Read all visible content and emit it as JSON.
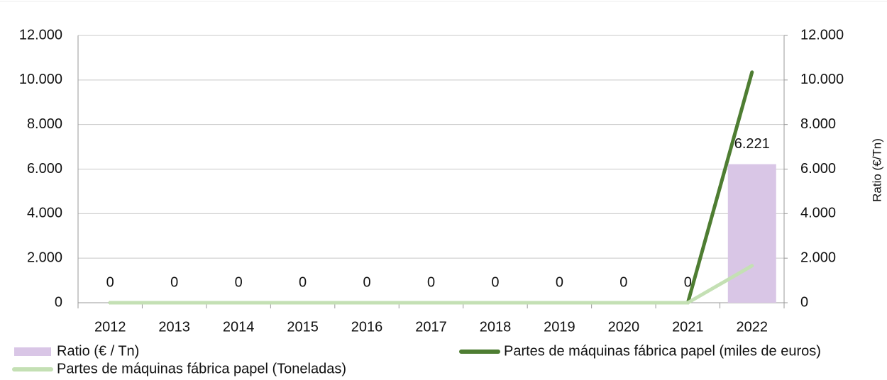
{
  "chart_data": {
    "type": "bar",
    "y2_label": "Ratio (€/Tn)",
    "categories": [
      "2012",
      "2013",
      "2014",
      "2015",
      "2016",
      "2017",
      "2018",
      "2019",
      "2020",
      "2021",
      "2022"
    ],
    "series": [
      {
        "name": "Ratio (€ / Tn)",
        "type": "bar",
        "axis": "y2",
        "color": "#d9c6e6",
        "values": [
          0,
          0,
          0,
          0,
          0,
          0,
          0,
          0,
          0,
          0,
          6221
        ],
        "value_labels": [
          "0",
          "0",
          "0",
          "0",
          "0",
          "0",
          "0",
          "0",
          "0",
          "0",
          "6.221"
        ]
      },
      {
        "name": "Partes de máquinas fábrica papel (miles de euros)",
        "type": "line",
        "axis": "y",
        "color": "#4e7d32",
        "values": [
          0,
          0,
          0,
          0,
          0,
          0,
          0,
          0,
          0,
          0,
          10350
        ]
      },
      {
        "name": "Partes de máquinas fábrica papel (Toneladas)",
        "type": "line",
        "axis": "y",
        "color": "#c4e0b4",
        "values": [
          0,
          0,
          0,
          0,
          0,
          0,
          0,
          0,
          0,
          0,
          1660
        ]
      }
    ],
    "ylim": [
      0,
      12000
    ],
    "yticks": [
      0,
      {
        "value": 2000,
        "label": "2.000"
      },
      {
        "value": 4000,
        "label": "4.000"
      },
      {
        "value": 6000,
        "label": "6.000"
      },
      {
        "value": 8000,
        "label": "8.000"
      },
      {
        "value": 10000,
        "label": "10.000"
      },
      {
        "value": 12000,
        "label": "12.000"
      }
    ],
    "y2lim": [
      0,
      12000
    ],
    "y2ticks": [
      0,
      {
        "value": 2000,
        "label": "2.000"
      },
      {
        "value": 4000,
        "label": "4.000"
      },
      {
        "value": 6000,
        "label": "6.000"
      },
      {
        "value": 8000,
        "label": "8.000"
      },
      {
        "value": 10000,
        "label": "10.000"
      },
      {
        "value": 12000,
        "label": "12.000"
      }
    ],
    "grid": true
  }
}
